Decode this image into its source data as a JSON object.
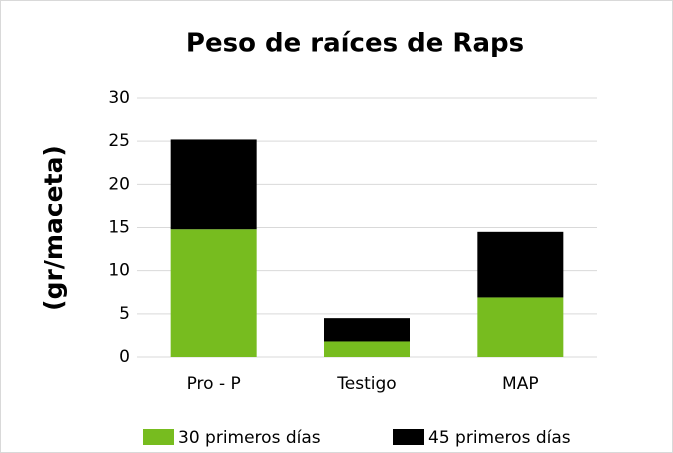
{
  "chart_data": {
    "type": "stacked_bar",
    "title": "Peso de raíces de Raps",
    "y_label": "(gr/maceta)",
    "categories": [
      "Pro - P",
      "Testigo",
      "MAP"
    ],
    "series": [
      {
        "name": "30 primeros días",
        "color": "#77bc1f",
        "values": [
          14.8,
          1.8,
          6.9
        ]
      },
      {
        "name": "45 primeros días",
        "color": "#000000",
        "values": [
          10.4,
          2.7,
          7.6
        ]
      }
    ],
    "ylim": [
      0,
      30
    ],
    "yticks": [
      0,
      5,
      10,
      15,
      20,
      25,
      30
    ],
    "grid": true,
    "legend": "bottom"
  }
}
